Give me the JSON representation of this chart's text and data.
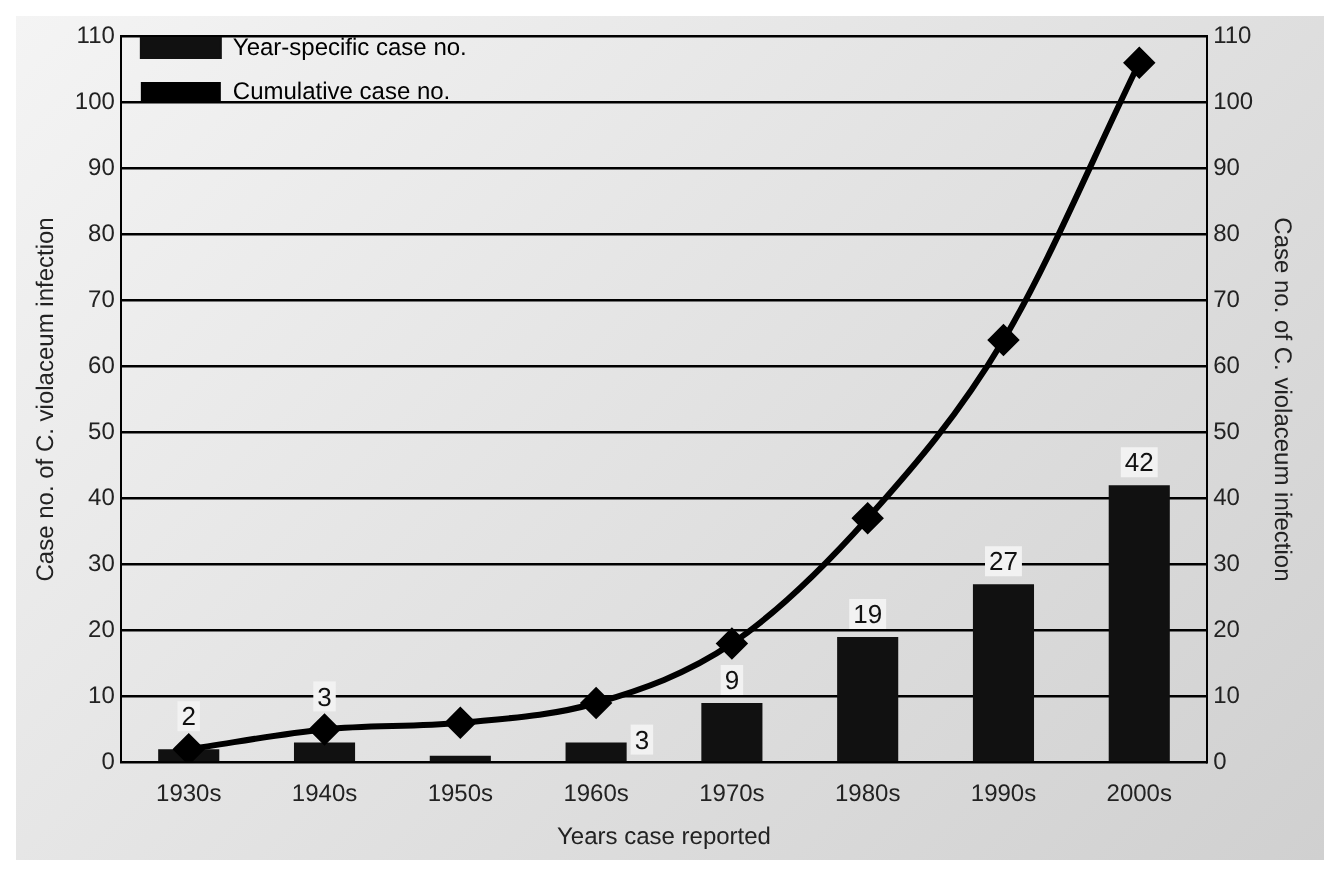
{
  "chart_data": {
    "type": "bar",
    "xlabel": "Years case reported",
    "ylabel": "Case no. of C. violaceum infection",
    "y2label": "Case no. of C. violaceum infection",
    "categories": [
      "1930s",
      "1940s",
      "1950s",
      "1960s",
      "1970s",
      "1980s",
      "1990s",
      "2000s"
    ],
    "series": [
      {
        "name": "Year-specific case no.",
        "color": "#111111",
        "values": [
          2,
          3,
          1,
          3,
          9,
          19,
          27,
          42
        ],
        "value_labels": [
          "2",
          "3",
          null,
          "3",
          "9",
          "19",
          "27",
          "42"
        ]
      },
      {
        "name": "Cumulative case no.",
        "type": "line",
        "axis": "y2",
        "color": "#000000",
        "values": [
          2,
          5,
          6,
          9,
          18,
          37,
          64,
          106
        ],
        "marker": "diamond",
        "line_style": "solid"
      }
    ],
    "ylim": [
      0,
      110
    ],
    "yticks": [
      0,
      10,
      20,
      30,
      40,
      50,
      60,
      70,
      80,
      90,
      100,
      110
    ],
    "y2lim": [
      0,
      110
    ],
    "y2ticks": [
      0,
      10,
      20,
      30,
      40,
      50,
      60,
      70,
      80,
      90,
      100,
      110
    ],
    "grid": "y",
    "legend": "top left"
  }
}
